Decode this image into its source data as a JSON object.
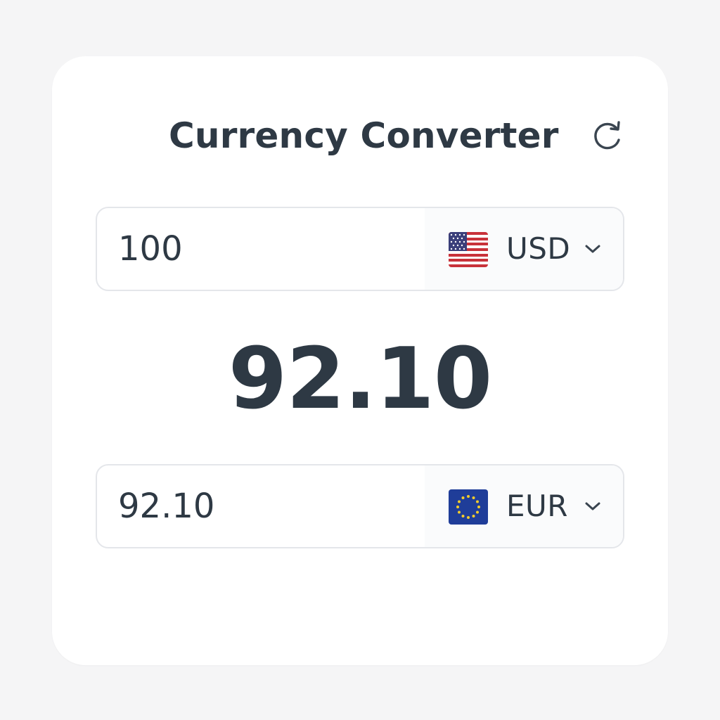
{
  "header": {
    "title": "Currency Converter",
    "refresh_icon": "refresh-icon"
  },
  "from": {
    "amount": "100",
    "currency_code": "USD",
    "flag_icon": "us-flag-icon"
  },
  "result": {
    "value": "92.10"
  },
  "to": {
    "amount": "92.10",
    "currency_code": "EUR",
    "flag_icon": "eu-flag-icon"
  },
  "colors": {
    "text": "#2e3944",
    "border": "#e4e6ea",
    "background": "#f5f5f6",
    "card": "#ffffff"
  }
}
